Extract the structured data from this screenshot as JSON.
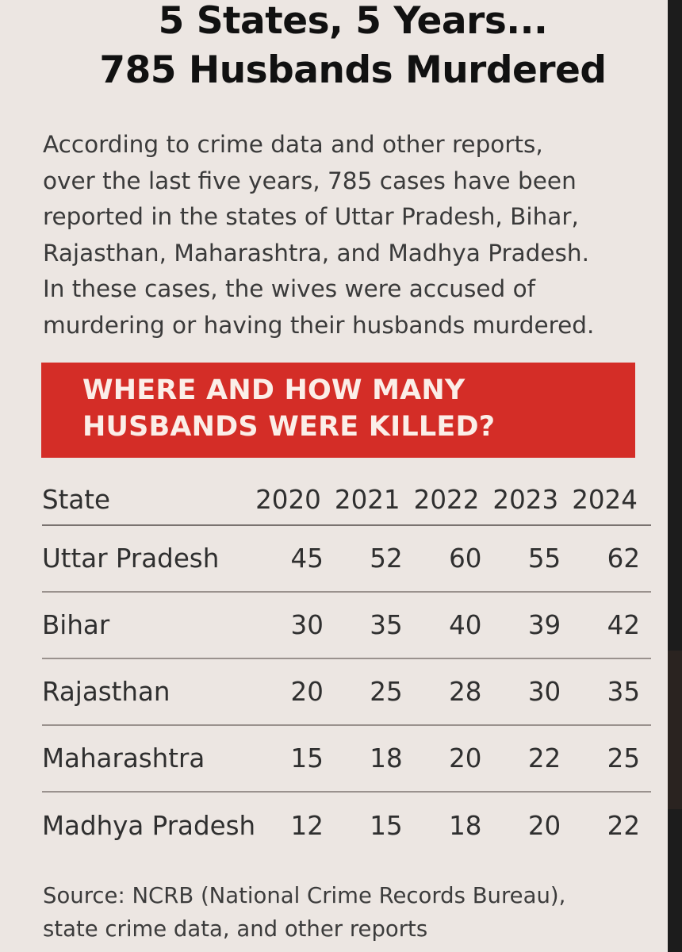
{
  "headline": {
    "line1": "5 States, 5 Years...",
    "line2": "785 Husbands Murdered"
  },
  "intro": [
    "According to crime data and other reports,",
    "over the last five years, 785 cases have been",
    "reported in the states of Uttar Pradesh, Bihar,",
    "Rajasthan, Maharashtra, and Madhya Pradesh.",
    "In these cases, the wives were accused of",
    "murdering or having their husbands murdered."
  ],
  "banner": {
    "line1": "WHERE AND HOW MANY",
    "line2": "HUSBANDS WERE KILLED?"
  },
  "table": {
    "headers": [
      "State",
      "2020",
      "2021",
      "2022",
      "2023",
      "2024"
    ],
    "rows": [
      {
        "state": "Uttar Pradesh",
        "values": [
          "45",
          "52",
          "60",
          "55",
          "62"
        ]
      },
      {
        "state": "Bihar",
        "values": [
          "30",
          "35",
          "40",
          "39",
          "42"
        ]
      },
      {
        "state": "Rajasthan",
        "values": [
          "20",
          "25",
          "28",
          "30",
          "35"
        ]
      },
      {
        "state": "Maharashtra",
        "values": [
          "15",
          "18",
          "20",
          "22",
          "25"
        ]
      },
      {
        "state": "Madhya Pradesh",
        "values": [
          "12",
          "15",
          "18",
          "20",
          "22"
        ]
      }
    ]
  },
  "source": {
    "line1": "Source: NCRB (National Crime Records Bureau),",
    "line2": "state crime data, and other reports"
  },
  "colors": {
    "background": "#ece6e2",
    "banner": "#d42d27",
    "banner_text": "#fbeee8",
    "headline_text": "#111111"
  }
}
